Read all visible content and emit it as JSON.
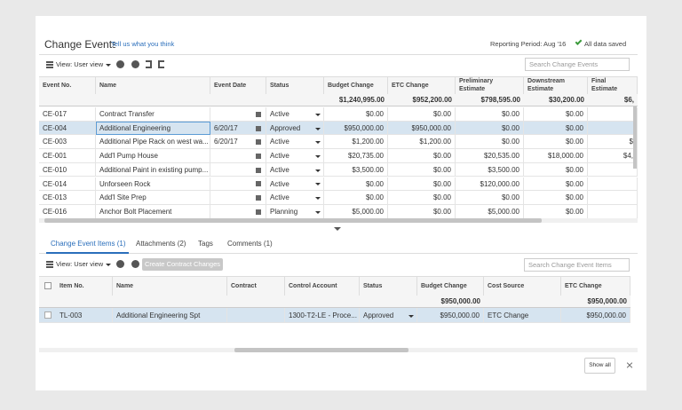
{
  "header": {
    "title": "Change Events",
    "feedback_link": "Tell us what you think",
    "reporting_period": "Reporting Period: Aug '16",
    "save_status": "All data saved"
  },
  "events": {
    "view": "View: User view",
    "search_placeholder": "Search Change Events",
    "columns": [
      "Event No.",
      "Name",
      "Event Date",
      "Status",
      "Budget Change",
      "ETC Change",
      "Preliminary Estimate",
      "Downstream Estimate",
      "Final Estimate"
    ],
    "totals": [
      null,
      null,
      null,
      null,
      "$1,240,995.00",
      "$952,200.00",
      "$798,595.00",
      "$30,200.00",
      "$6,"
    ],
    "rows": [
      [
        "CE-017",
        "Contract Transfer",
        null,
        "Active",
        "$0.00",
        "$0.00",
        "$0.00",
        "$0.00",
        null
      ],
      [
        "CE-004",
        "Additional Engineering",
        "6/20/17",
        "Approved",
        "$950,000.00",
        "$950,000.00",
        "$0.00",
        "$0.00",
        null
      ],
      [
        "CE-003",
        "Additional Pipe Rack on west wa...",
        "6/20/17",
        "Active",
        "$1,200.00",
        "$1,200.00",
        "$0.00",
        "$0.00",
        "$"
      ],
      [
        "CE-001",
        "Add'l Pump House",
        null,
        "Active",
        "$20,735.00",
        "$0.00",
        "$20,535.00",
        "$18,000.00",
        "$4,"
      ],
      [
        "CE-010",
        "Additional Paint in existing pump...",
        null,
        "Active",
        "$3,500.00",
        "$0.00",
        "$3,500.00",
        "$0.00",
        null
      ],
      [
        "CE-014",
        "Unforseen Rock",
        null,
        "Active",
        "$0.00",
        "$0.00",
        "$120,000.00",
        "$0.00",
        null
      ],
      [
        "CE-013",
        "Add'l Site Prep",
        null,
        "Active",
        "$0.00",
        "$0.00",
        "$0.00",
        "$0.00",
        null
      ],
      [
        "CE-016",
        "Anchor Bolt Placement",
        null,
        "Planning",
        "$5,000.00",
        "$0.00",
        "$5,000.00",
        "$0.00",
        null
      ]
    ]
  },
  "tabs": [
    "Change Event Items (1)",
    "Attachments (2)",
    "Tags",
    "Comments (1)"
  ],
  "items": {
    "view": "View: User view",
    "create_button": "Create Contract Changes",
    "search_placeholder": "Search Change Event Items",
    "columns": [
      "Item No.",
      "Name",
      "Contract",
      "Control Account",
      "Status",
      "Budget Change",
      "Cost Source",
      "ETC Change"
    ],
    "totals": [
      null,
      null,
      null,
      null,
      null,
      "$950,000.00",
      null,
      "$950,000.00"
    ],
    "rows": [
      [
        "TL-003",
        "Additional Engineering Spt",
        null,
        "1300-T2-LE - Proce...",
        "Approved",
        "$950,000.00",
        "ETC Change",
        "$950,000.00"
      ]
    ]
  },
  "footer": {
    "show_all": "Show all"
  }
}
